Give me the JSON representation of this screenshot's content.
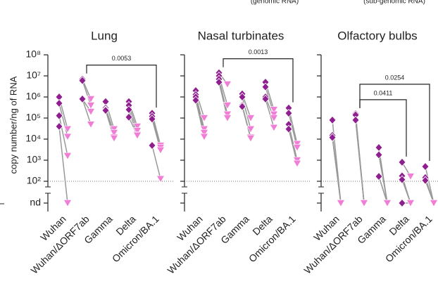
{
  "chart_data": {
    "type": "paired-scatter",
    "ylabel": "copy number/ng of RNA",
    "log_y": true,
    "ylim": [
      100,
      100000000
    ],
    "yticks": [
      {
        "value": 10,
        "label": "nd"
      },
      {
        "value": 100,
        "label": "10²"
      },
      {
        "value": 1000,
        "label": "10³"
      },
      {
        "value": 10000,
        "label": "10⁴"
      },
      {
        "value": 100000,
        "label": "10⁵"
      },
      {
        "value": 1000000,
        "label": "10⁶"
      },
      {
        "value": 10000000,
        "label": "10⁷"
      },
      {
        "value": 100000000,
        "label": "10⁸"
      }
    ],
    "categories": [
      "Wuhan",
      "Wuhan/ΔORF7ab",
      "Gamma",
      "Delta",
      "Omicron/BA.1"
    ],
    "series": [
      {
        "name": "(genomic RNA)",
        "color": "#8e1f8e",
        "marker": "diamond"
      },
      {
        "name": "(sub-genomic RNA)",
        "color": "#f07ed6",
        "marker": "triangle"
      }
    ],
    "panels": [
      {
        "title": "Lung",
        "series": [
          {
            "values": [
              [
                1000000,
                500000,
                130000,
                40000
              ],
              [
                7000000,
                6000000,
                800000,
                800000
              ],
              [
                600000,
                300000,
                250000,
                230000
              ],
              [
                600000,
                400000,
                250000,
                110000
              ],
              [
                170000,
                120000,
                90000,
                5000
              ]
            ]
          },
          {
            "values": [
              [
                30000,
                13000,
                1600,
                10
              ],
              [
                800000,
                400000,
                200000,
                50000
              ],
              [
                30000,
                20000,
                12000,
                11000
              ],
              [
                40000,
                25000,
                16000,
                15000
              ],
              [
                5000,
                4000,
                3000,
                130
              ]
            ]
          }
        ],
        "brackets": [
          {
            "from": "Wuhan/ΔORF7ab",
            "to": "Omicron/BA.1",
            "label": "0.0053"
          }
        ]
      },
      {
        "title": "Nasal turbinates",
        "series": [
          {
            "values": [
              [
                2000000,
                1300000,
                1000000,
                700000
              ],
              [
                14000000,
                10000000,
                7000000,
                5000000
              ],
              [
                1400000,
                1000000,
                400000,
                350000
              ],
              [
                5000000,
                3000000,
                1000000,
                800000
              ],
              [
                300000,
                170000,
                50000,
                30000
              ]
            ]
          },
          {
            "values": [
              [
                100000,
                30000,
                20000,
                13000
              ],
              [
                4000000,
                400000,
                150000,
                100000
              ],
              [
                100000,
                30000,
                12000,
                11000
              ],
              [
                250000,
                150000,
                100000,
                35000
              ],
              [
                6000,
                4000,
                1000,
                700
              ]
            ]
          }
        ],
        "brackets": [
          {
            "from": "Wuhan/ΔORF7ab",
            "to": "Omicron/BA.1",
            "label": "0.0013"
          }
        ]
      },
      {
        "title": "Olfactory bulbs",
        "series": [
          {
            "values": [
              [
                80000,
                15000,
                12000,
                12000
              ],
              [
                160000,
                140000,
                80000,
                80000
              ],
              [
                4000,
                1800,
                170,
                170
              ],
              [
                800,
                180,
                120,
                10
              ],
              [
                500,
                150,
                110,
                110
              ]
            ]
          },
          {
            "values": [
              [
                10,
                10,
                10,
                10
              ],
              [
                10,
                10,
                10,
                10
              ],
              [
                10,
                10,
                10,
                10
              ],
              [
                170,
                10,
                10,
                10
              ],
              [
                10,
                10,
                10,
                10
              ]
            ]
          }
        ],
        "brackets": [
          {
            "from": "Wuhan/ΔORF7ab",
            "to": "Delta",
            "label": "0.0411"
          },
          {
            "from": "Wuhan/ΔORF7ab",
            "to": "Omicron/BA.1",
            "label": "0.0254"
          }
        ]
      }
    ]
  }
}
